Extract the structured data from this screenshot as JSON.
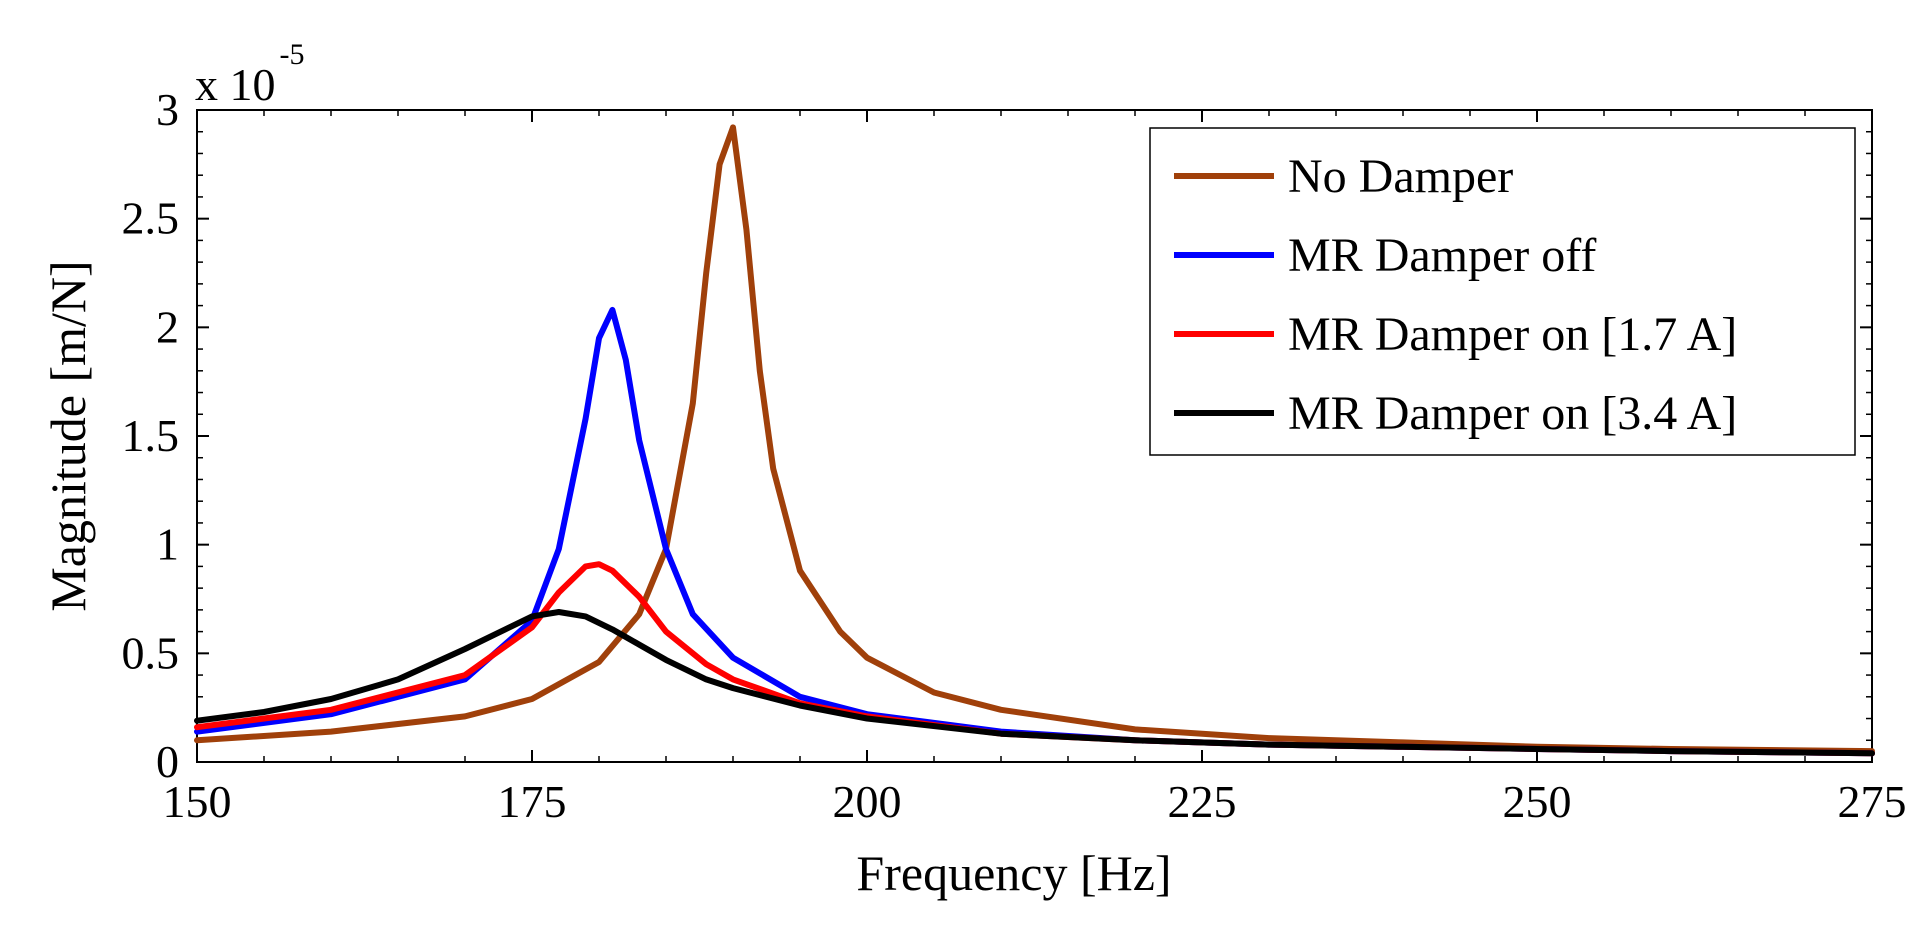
{
  "chart_data": {
    "type": "line",
    "title": "",
    "xlabel": "Frequency [Hz]",
    "ylabel": "Magnitude [m/N]",
    "y_exponent_base": "x 10",
    "y_exponent_power": "-5",
    "xlim": [
      150,
      275
    ],
    "ylim": [
      0,
      3
    ],
    "x_ticks": [
      150,
      175,
      200,
      225,
      250,
      275
    ],
    "x_tick_labels": [
      "150",
      "175",
      "200",
      "225",
      "250",
      "275"
    ],
    "y_ticks": [
      0,
      0.5,
      1,
      1.5,
      2,
      2.5,
      3
    ],
    "y_tick_labels": [
      "0",
      "0.5",
      "1",
      "1.5",
      "2",
      "2.5",
      "3"
    ],
    "grid": false,
    "legend_position": "top-right",
    "series": [
      {
        "name": "No Damper",
        "color": "#A0400A",
        "x": [
          150,
          160,
          170,
          175,
          180,
          183,
          185,
          187,
          188,
          189,
          190,
          191,
          192,
          193,
          195,
          198,
          200,
          205,
          210,
          220,
          230,
          240,
          250,
          260,
          275
        ],
        "y": [
          0.1,
          0.14,
          0.21,
          0.29,
          0.46,
          0.68,
          0.98,
          1.65,
          2.25,
          2.75,
          2.92,
          2.45,
          1.8,
          1.35,
          0.88,
          0.6,
          0.48,
          0.32,
          0.24,
          0.15,
          0.11,
          0.09,
          0.07,
          0.06,
          0.05
        ]
      },
      {
        "name": "MR Damper off",
        "color": "#0000FF",
        "x": [
          150,
          160,
          170,
          175,
          177,
          179,
          180,
          181,
          182,
          183,
          185,
          187,
          190,
          195,
          200,
          210,
          220,
          230,
          240,
          250,
          260,
          275
        ],
        "y": [
          0.14,
          0.22,
          0.38,
          0.65,
          0.98,
          1.58,
          1.95,
          2.08,
          1.85,
          1.48,
          0.98,
          0.68,
          0.48,
          0.3,
          0.22,
          0.14,
          0.1,
          0.08,
          0.07,
          0.06,
          0.05,
          0.04
        ]
      },
      {
        "name": "MR Damper on [1.7 A]",
        "color": "#FF0000",
        "x": [
          150,
          160,
          170,
          175,
          177,
          179,
          180,
          181,
          183,
          185,
          188,
          190,
          195,
          200,
          210,
          220,
          230,
          240,
          250,
          260,
          275
        ],
        "y": [
          0.16,
          0.24,
          0.4,
          0.62,
          0.78,
          0.9,
          0.91,
          0.88,
          0.76,
          0.6,
          0.45,
          0.38,
          0.27,
          0.21,
          0.13,
          0.1,
          0.08,
          0.07,
          0.06,
          0.05,
          0.04
        ]
      },
      {
        "name": "MR Damper on [3.4 A]",
        "color": "#000000",
        "x": [
          150,
          155,
          160,
          165,
          170,
          173,
          175,
          177,
          179,
          181,
          183,
          185,
          188,
          190,
          195,
          200,
          210,
          220,
          230,
          240,
          250,
          260,
          275
        ],
        "y": [
          0.19,
          0.23,
          0.29,
          0.38,
          0.52,
          0.61,
          0.67,
          0.69,
          0.67,
          0.61,
          0.54,
          0.47,
          0.38,
          0.34,
          0.26,
          0.2,
          0.13,
          0.1,
          0.08,
          0.07,
          0.06,
          0.05,
          0.04
        ]
      }
    ]
  }
}
